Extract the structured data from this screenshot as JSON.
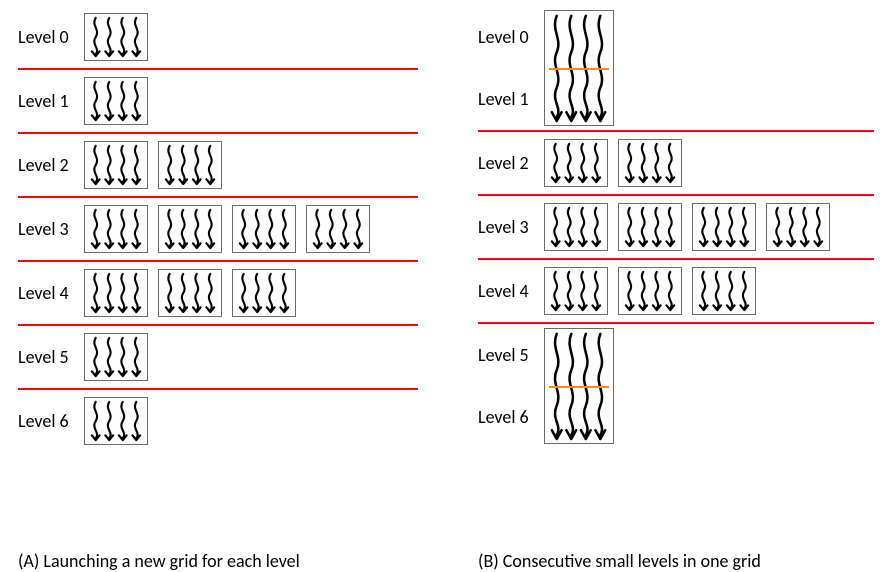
{
  "colors": {
    "divider": "#ff0000",
    "block_border": "#6b6b6b",
    "wave_stroke": "#000000",
    "sync_line": "#ff8c1a",
    "text": "#000000",
    "background": "#ffffff"
  },
  "typography": {
    "label_fontsize": 18,
    "caption_fontsize": 18,
    "font_family": "Calibri"
  },
  "wave": {
    "threads_per_block": 4,
    "stroke_width": 2.2,
    "arrowhead_size": 4
  },
  "panelA": {
    "caption": "(A)  Launching a new grid for each level",
    "levels": [
      {
        "label": "Level 0",
        "blocks": 1,
        "divider_after": true
      },
      {
        "label": "Level 1",
        "blocks": 1,
        "divider_after": true
      },
      {
        "label": "Level 2",
        "blocks": 2,
        "divider_after": true
      },
      {
        "label": "Level 3",
        "blocks": 4,
        "divider_after": true
      },
      {
        "label": "Level 4",
        "blocks": 3,
        "divider_after": true
      },
      {
        "label": "Level 5",
        "blocks": 1,
        "divider_after": true
      },
      {
        "label": "Level 6",
        "blocks": 1,
        "divider_after": false
      }
    ]
  },
  "panelB": {
    "caption": "(B)  Consecutive small levels in one grid",
    "rows": [
      {
        "type": "merged",
        "labels": [
          "Level 0",
          "Level 1"
        ],
        "blocks": 1,
        "sync_line_width": 2,
        "divider_after": true
      },
      {
        "type": "single",
        "label": "Level 2",
        "blocks": 2,
        "divider_after": true
      },
      {
        "type": "single",
        "label": "Level 3",
        "blocks": 4,
        "divider_after": true
      },
      {
        "type": "single",
        "label": "Level 4",
        "blocks": 3,
        "divider_after": true
      },
      {
        "type": "merged",
        "labels": [
          "Level 5",
          "Level 6"
        ],
        "blocks": 1,
        "sync_line_width": 2,
        "divider_after": false
      }
    ]
  }
}
